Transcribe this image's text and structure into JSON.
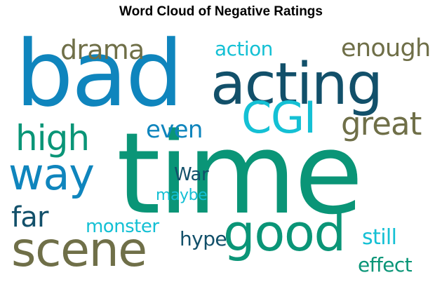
{
  "title": "Word Cloud of Negative Ratings",
  "colors": {
    "blue": "#0f85bd",
    "navy": "#12506a",
    "teal": "#0a9577",
    "cyan": "#14c0d4",
    "olive": "#6f6f48"
  },
  "words": [
    {
      "text": "time",
      "color": "#0a9577"
    },
    {
      "text": "bad",
      "color": "#0f85bd"
    },
    {
      "text": "acting",
      "color": "#12506a"
    },
    {
      "text": "CGI",
      "color": "#14c0d4"
    },
    {
      "text": "good",
      "color": "#0a9577"
    },
    {
      "text": "scene",
      "color": "#6f6f48"
    },
    {
      "text": "way",
      "color": "#0f85bd"
    },
    {
      "text": "high",
      "color": "#0a9577"
    },
    {
      "text": "great",
      "color": "#6f6f48"
    },
    {
      "text": "drama",
      "color": "#6f6f48"
    },
    {
      "text": "action",
      "color": "#14c0d4"
    },
    {
      "text": "enough",
      "color": "#6f6f48"
    },
    {
      "text": "even",
      "color": "#0f85bd"
    },
    {
      "text": "far",
      "color": "#12506a"
    },
    {
      "text": "monster",
      "color": "#14c0d4"
    },
    {
      "text": "War",
      "color": "#12506a"
    },
    {
      "text": "maybe",
      "color": "#14c0d4"
    },
    {
      "text": "hype",
      "color": "#12506a"
    },
    {
      "text": "still",
      "color": "#14c0d4"
    },
    {
      "text": "effect",
      "color": "#0a9577"
    }
  ]
}
